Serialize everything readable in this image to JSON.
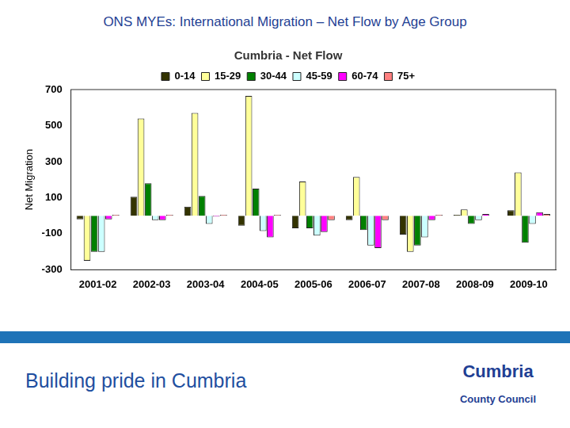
{
  "header": "ONS MYEs: International Migration – Net Flow by Age Group",
  "footer": "Building pride in Cumbria",
  "logo": [
    "Cumbria",
    "County Council"
  ],
  "chart_data": {
    "type": "bar",
    "title": "Cumbria - Net Flow",
    "y_label": "Net Migration",
    "categories": [
      "2001-02",
      "2002-03",
      "2003-04",
      "2004-05",
      "2005-06",
      "2006-07",
      "2007-08",
      "2008-09",
      "2009-10"
    ],
    "series": [
      {
        "name": "0-14",
        "color": "#333300",
        "values": [
          -20,
          105,
          50,
          -55,
          -70,
          -25,
          -105,
          5,
          30
        ]
      },
      {
        "name": "15-29",
        "color": "#ffff99",
        "values": [
          -250,
          540,
          570,
          665,
          190,
          215,
          -200,
          35,
          240
        ]
      },
      {
        "name": "30-44",
        "color": "#008000",
        "values": [
          -200,
          180,
          110,
          150,
          -70,
          -80,
          -165,
          -45,
          -150
        ]
      },
      {
        "name": "45-59",
        "color": "#ccffff",
        "values": [
          -200,
          -25,
          -45,
          -85,
          -110,
          -165,
          -120,
          -25,
          -45
        ]
      },
      {
        "name": "60-74",
        "color": "#ff00ff",
        "values": [
          -20,
          -25,
          -5,
          -120,
          -90,
          -180,
          -25,
          10,
          20
        ]
      },
      {
        "name": "75+",
        "color": "#ff8080",
        "values": [
          5,
          5,
          5,
          5,
          -25,
          -25,
          5,
          0,
          10
        ]
      }
    ],
    "ylim": [
      -300,
      700
    ],
    "yticks": [
      -300,
      -100,
      100,
      300,
      500,
      700
    ],
    "grid": false,
    "legend": "top"
  }
}
